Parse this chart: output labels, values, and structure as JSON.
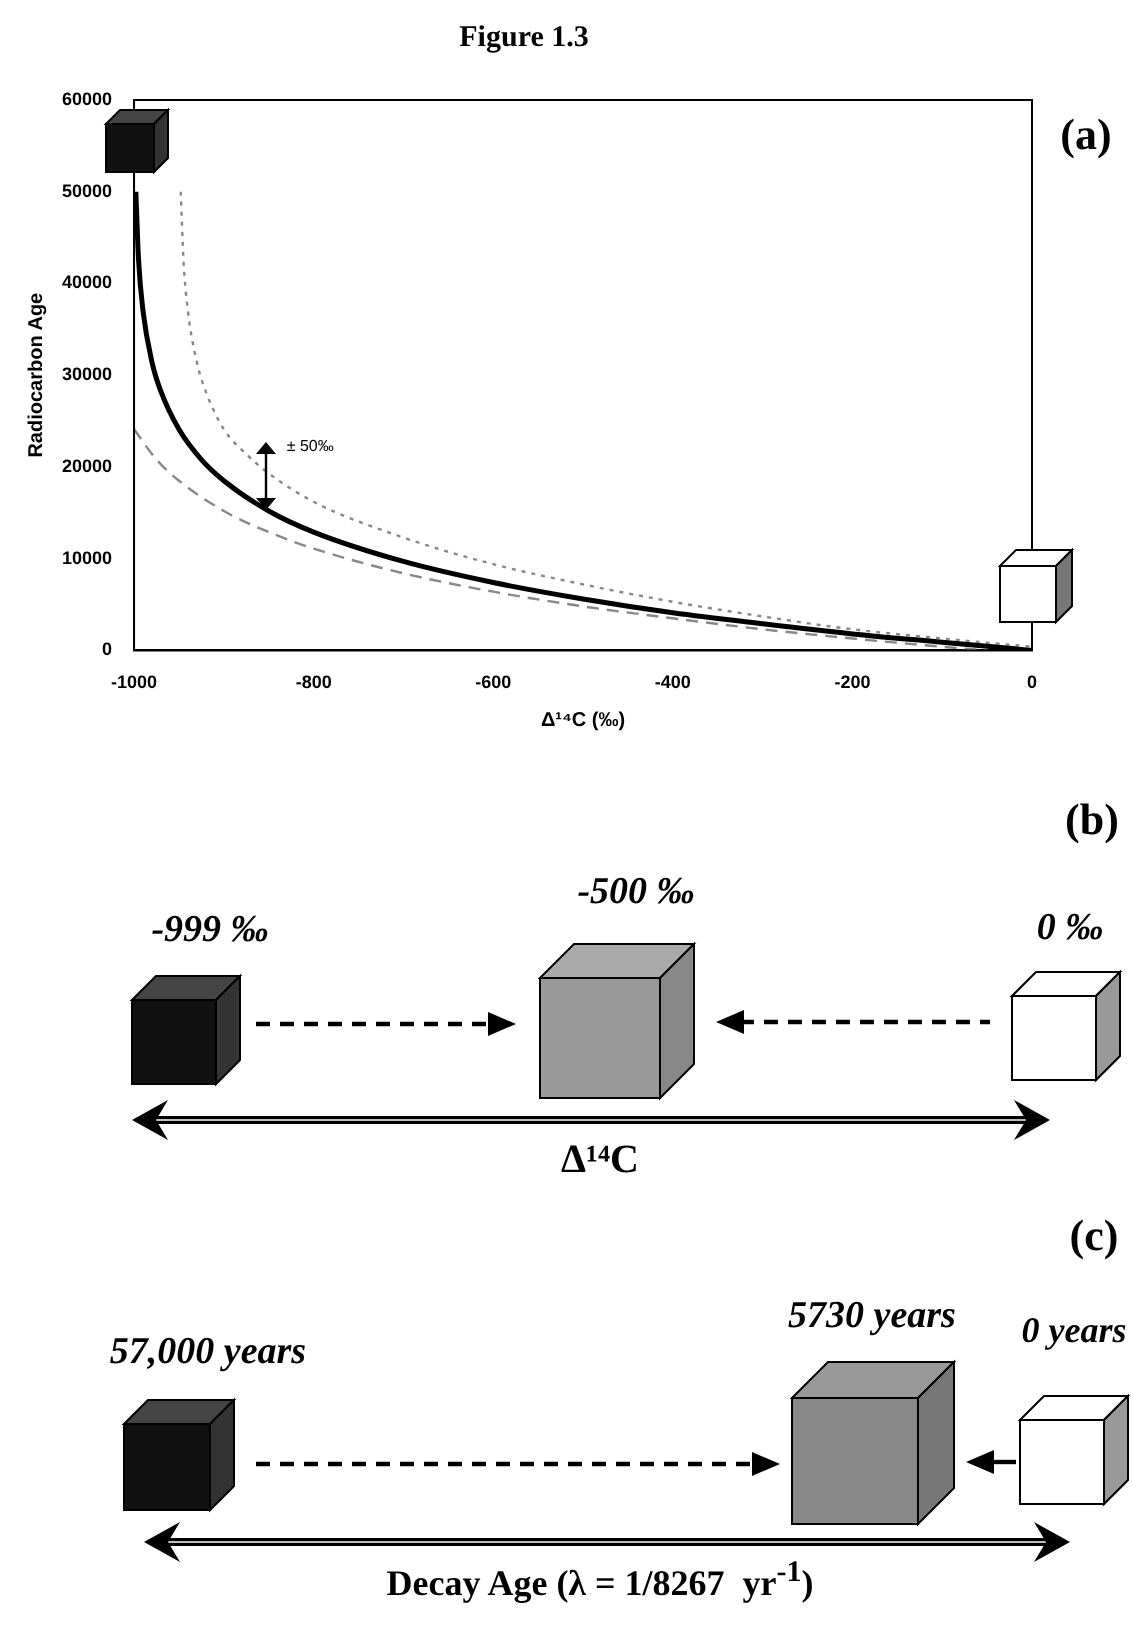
{
  "chart_data": [
    {
      "type": "line",
      "title": "Figure 1.3",
      "xlabel": "Δ¹⁴C (‰)",
      "ylabel": "Radiocarbon Age",
      "xlim": [
        -1000,
        0
      ],
      "xticks": [
        -1000,
        -800,
        -600,
        -400,
        -200,
        0
      ],
      "ylim": [
        0,
        60000
      ],
      "yticks": [
        0,
        10000,
        20000,
        30000,
        40000,
        50000,
        60000
      ],
      "grid": false,
      "legend": false,
      "marker": "none",
      "annotations": [
        "(a)",
        "± 50‰"
      ],
      "series": [
        {
          "color": "#000000",
          "line_style": "solid",
          "x": [
            -998,
            -995,
            -990,
            -980,
            -970,
            -950,
            -925,
            -900,
            -850,
            -800,
            -700,
            -600,
            -500,
            -400,
            -300,
            -200,
            -100,
            0
          ],
          "values": [
            50000,
            42600,
            37000,
            31400,
            28200,
            24100,
            20800,
            18500,
            15200,
            12900,
            9700,
            7400,
            5600,
            4100,
            2900,
            1800,
            900,
            0
          ]
        },
        {
          "color": "#888888",
          "line_style": "dotted",
          "x": [
            -948,
            -945,
            -940,
            -930,
            -920,
            -900,
            -875,
            -850,
            -800,
            -700,
            -600,
            -500,
            -400,
            -300,
            -200,
            -100,
            0
          ],
          "values": [
            50000,
            42600,
            37000,
            31400,
            28200,
            24100,
            21400,
            19300,
            16200,
            12300,
            9400,
            7200,
            5300,
            3700,
            2300,
            1300,
            400
          ]
        },
        {
          "color": "#888888",
          "line_style": "dashed",
          "x": [
            -1000,
            -975,
            -950,
            -900,
            -850,
            -800,
            -700,
            -600,
            -500,
            -400,
            -300,
            -200,
            -100,
            -50
          ],
          "values": [
            24100,
            20800,
            18500,
            15200,
            12900,
            11100,
            8400,
            6400,
            4800,
            3500,
            2300,
            1300,
            400,
            0
          ]
        }
      ]
    },
    {
      "type": "other",
      "annotations": [
        "(b)",
        "-999 ‰",
        "-500 ‰",
        "0 ‰",
        "Δ¹⁴C"
      ]
    },
    {
      "type": "other",
      "annotations": [
        "(c)",
        "57,000 years",
        "5730 years",
        "0 years",
        "Decay Age (λ = 1/8267  yr$^{-1}$)"
      ]
    }
  ]
}
